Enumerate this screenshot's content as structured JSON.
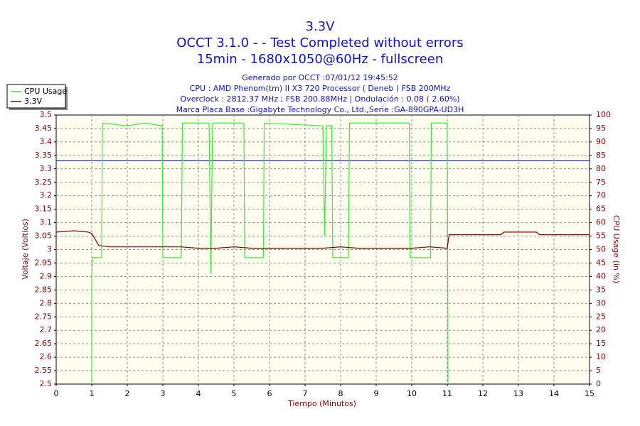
{
  "chart_data": {
    "type": "line",
    "title": "3.3V",
    "title_lines": [
      "OCCT 3.1.0 -  - Test Completed without errors",
      "15min - 1680x1050@60Hz - fullscreen"
    ],
    "subtitle_lines": [
      "Generado por OCCT :07/01/12 19:45:52",
      "CPU : AMD Phenom(tm) II X3 720 Processor ( Deneb ) FSB 200MHz",
      "Overclock : 2812.37 MHz ; FSB 200.88MHz | Ondulación : 0.08 ( 2.60%)",
      "Marca Placa Base :Gigabyte Technology Co., Ltd.,Serie :GA-890GPA-UD3H"
    ],
    "xlabel": "Tiempo (Minutos)",
    "ylabel": "Voltaje (Voltios)",
    "y2label": "CPU Usage (in %)",
    "xlim": [
      0,
      15
    ],
    "xticks": [
      0,
      1,
      2,
      3,
      4,
      5,
      6,
      7,
      8,
      9,
      10,
      11,
      12,
      13,
      14,
      15
    ],
    "ylim": [
      2.5,
      3.5
    ],
    "yticks": [
      2.5,
      2.55,
      2.6,
      2.65,
      2.7,
      2.75,
      2.8,
      2.85,
      2.9,
      2.95,
      3,
      3.05,
      3.1,
      3.15,
      3.2,
      3.25,
      3.3,
      3.35,
      3.4,
      3.45,
      3.5
    ],
    "y2lim": [
      0,
      100
    ],
    "y2ticks": [
      0,
      5,
      10,
      15,
      20,
      25,
      30,
      35,
      40,
      45,
      50,
      55,
      60,
      65,
      70,
      75,
      80,
      85,
      90,
      95,
      100
    ],
    "grid": true,
    "legend": "top-left",
    "reference_line": {
      "value": 3.33,
      "color": "#0000c8"
    },
    "series": [
      {
        "name": "CPU Usage",
        "color": "#33ee33",
        "axis": "y2",
        "x": [
          1.0,
          1.0,
          1.02,
          1.28,
          1.3,
          2.0,
          2.5,
          2.98,
          3.0,
          3.52,
          3.55,
          4.3,
          4.35,
          4.4,
          5.28,
          5.3,
          5.83,
          5.85,
          7.5,
          7.55,
          7.6,
          7.75,
          7.78,
          8.22,
          8.25,
          9.93,
          9.95,
          10.53,
          10.55,
          11.0,
          11.02
        ],
        "values": [
          0,
          40,
          47,
          47,
          97,
          96,
          97,
          96,
          47,
          47,
          97,
          97,
          41,
          97,
          97,
          47,
          47,
          97,
          96,
          55,
          96,
          96,
          47,
          47,
          97,
          97,
          47,
          47,
          97,
          97,
          0
        ]
      },
      {
        "name": "3.3V",
        "color": "#800000",
        "axis": "y",
        "x": [
          0,
          0.5,
          0.9,
          1.0,
          1.2,
          1.5,
          2,
          2.5,
          3,
          3.5,
          4,
          4.5,
          5,
          5.5,
          6,
          6.5,
          7,
          7.5,
          8,
          8.5,
          9,
          9.5,
          10,
          10.5,
          11,
          11.05,
          11.5,
          12,
          12.5,
          12.6,
          13,
          13.5,
          13.6,
          14,
          14.5,
          15
        ],
        "values": [
          3.065,
          3.07,
          3.065,
          3.06,
          3.015,
          3.01,
          3.01,
          3.01,
          3.01,
          3.01,
          3.005,
          3.005,
          3.01,
          3.005,
          3.005,
          3.005,
          3.005,
          3.005,
          3.01,
          3.005,
          3.005,
          3.005,
          3.005,
          3.01,
          3.005,
          3.055,
          3.055,
          3.055,
          3.055,
          3.065,
          3.065,
          3.065,
          3.055,
          3.055,
          3.055,
          3.055
        ]
      }
    ]
  }
}
